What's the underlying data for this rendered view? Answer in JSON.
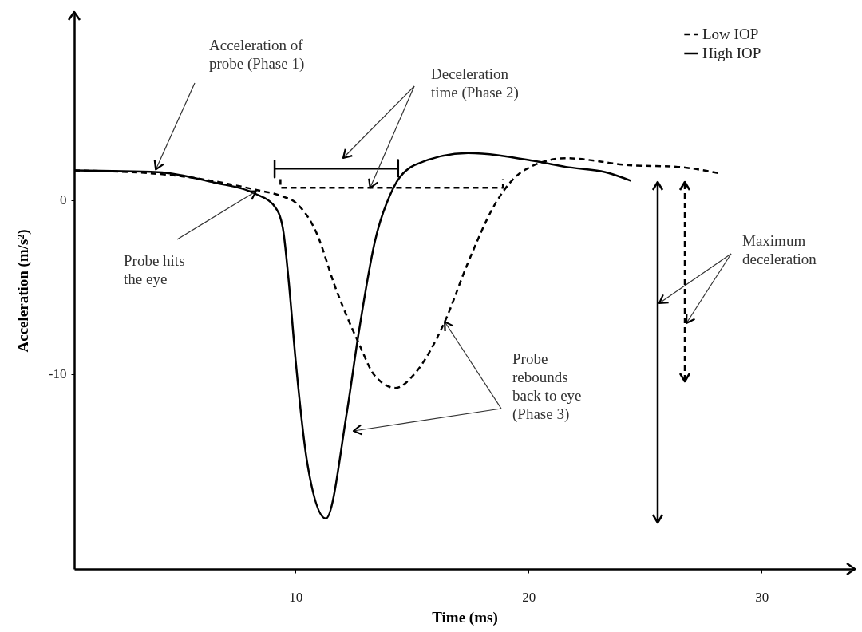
{
  "chart_data": {
    "type": "line",
    "xlabel": "Time (ms)",
    "ylabel": "Acceleration (m/s²)",
    "xlim": [
      0.5,
      34
    ],
    "ylim": [
      -21.2,
      10.8
    ],
    "xticks": [
      10,
      20,
      30
    ],
    "yticks": [
      0,
      -10
    ],
    "grid": false,
    "legend": "top right",
    "series": [
      {
        "name": "Low IOP",
        "color": "#000000",
        "line_style": "dashed",
        "x": [
          0.5,
          4.1,
          8.25,
          9.45,
          10.0,
          10.9,
          11.7,
          12.7,
          13.4,
          14.3,
          15.1,
          16.4,
          17.4,
          18.6,
          19.8,
          21.6,
          24.3,
          26.4,
          28.3
        ],
        "values": [
          1.7,
          1.5,
          0.6,
          0.2,
          -0.15,
          -1.9,
          -5.0,
          -8.2,
          -10.1,
          -10.8,
          -10.0,
          -7.0,
          -3.6,
          -0.15,
          1.7,
          2.4,
          2.0,
          1.9,
          1.5
        ]
      },
      {
        "name": "High IOP",
        "color": "#000000",
        "line_style": "solid",
        "x": [
          0.5,
          4.1,
          6.5,
          8.25,
          9.1,
          9.45,
          9.7,
          10.0,
          10.5,
          11.3,
          12.2,
          12.7,
          13.4,
          14.2,
          15.1,
          17.4,
          20.4,
          21.6,
          23.3,
          24.4
        ],
        "values": [
          1.7,
          1.6,
          1.0,
          0.37,
          -0.37,
          -1.6,
          -4.6,
          -9.2,
          -15.1,
          -18.3,
          -12.2,
          -7.7,
          -2.4,
          0.7,
          2.0,
          2.7,
          2.2,
          1.9,
          1.6,
          1.1
        ]
      },
      {
        "type": "line",
        "color": "#000000",
        "line_style": "solid",
        "x": [
          9.1,
          9.1,
          9.1,
          14.4,
          14.4,
          14.4
        ],
        "values": [
          2.3,
          1.3,
          1.8,
          1.8,
          2.3,
          1.3
        ]
      },
      {
        "type": "line",
        "color": "#000000",
        "line_style": "dashed",
        "x": [
          9.35,
          9.35,
          18.9,
          18.9
        ],
        "values": [
          1.2,
          0.7,
          0.7,
          1.2
        ]
      }
    ],
    "annotations": [
      {
        "text": "Acceleration of probe (Phase 1)",
        "x": 4.0,
        "y": 1.75
      },
      {
        "text": "Deceleration time (Phase 2)",
        "x": 13.2,
        "y": 0.7
      },
      {
        "text": "Probe hits the eye",
        "x": 8.3,
        "y": 0.5
      },
      {
        "text": "Probe rebounds back to eye (Phase 3)",
        "x": 16.4,
        "y": -7.0
      },
      "Maximum deceleration"
    ]
  }
}
